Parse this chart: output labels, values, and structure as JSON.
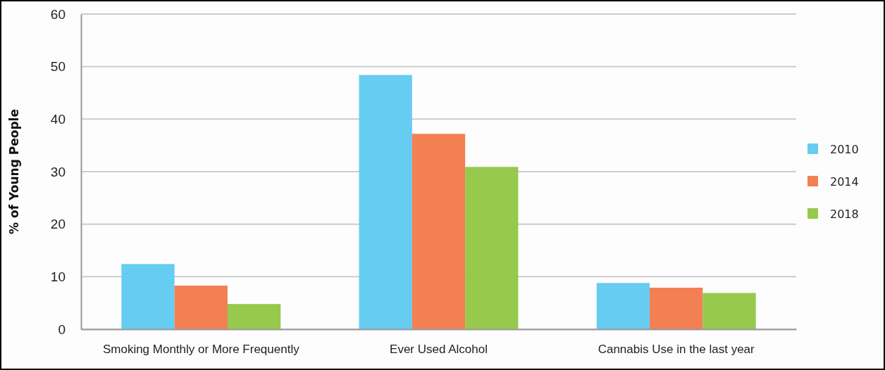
{
  "chart_data": {
    "type": "bar",
    "ylabel": "% of Young People",
    "categories": [
      "Smoking Monthly or More Frequently",
      "Ever Used Alcohol",
      "Cannabis Use in the last year"
    ],
    "series": [
      {
        "name": "2010",
        "color": "#66ccf2",
        "values": [
          12.4,
          48.4,
          8.8
        ]
      },
      {
        "name": "2014",
        "color": "#f28052",
        "values": [
          8.3,
          37.2,
          7.9
        ]
      },
      {
        "name": "2018",
        "color": "#96c94c",
        "values": [
          4.8,
          30.9,
          6.9
        ]
      }
    ],
    "ylim": [
      0,
      60
    ],
    "yticks": [
      0,
      10,
      20,
      30,
      40,
      50,
      60
    ],
    "grid": "y",
    "legend": "right"
  }
}
